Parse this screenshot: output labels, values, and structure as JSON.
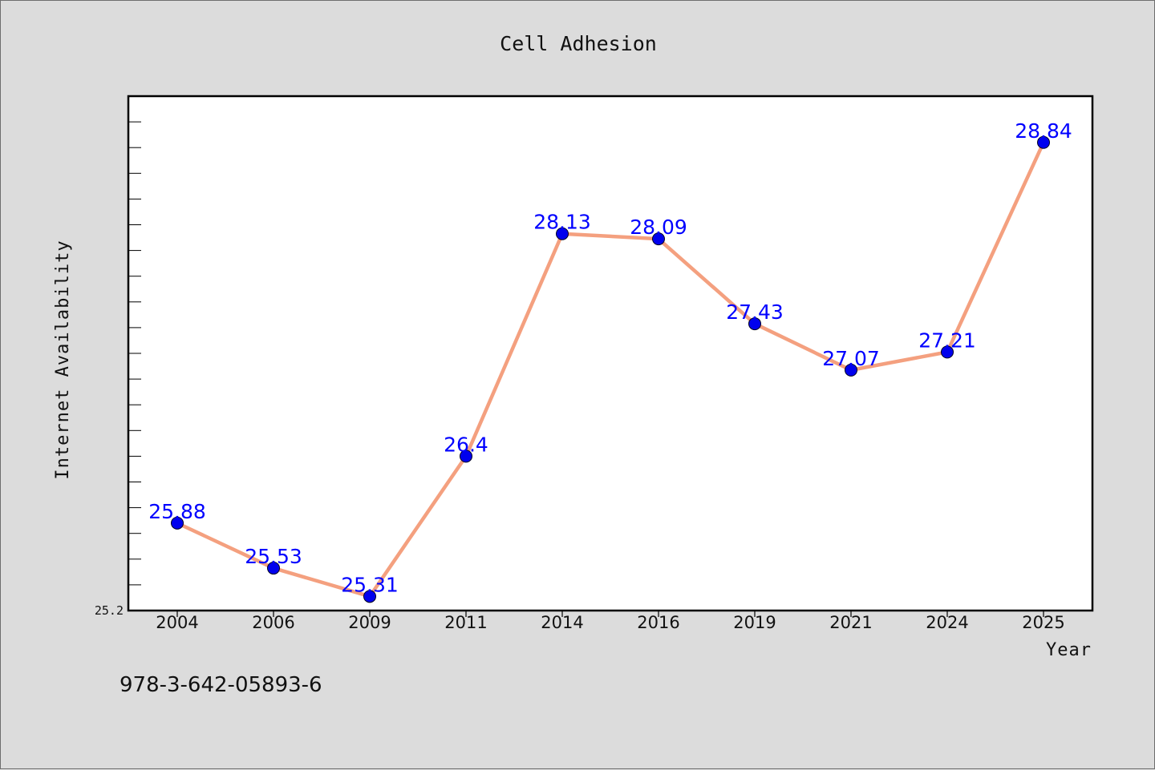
{
  "chart_data": {
    "type": "line",
    "title": "Cell Adhesion",
    "xlabel": "Year",
    "ylabel": "Internet Availability",
    "categories": [
      "2004",
      "2006",
      "2009",
      "2011",
      "2014",
      "2016",
      "2019",
      "2021",
      "2024",
      "2025"
    ],
    "series": [
      {
        "values": [
          25.88,
          25.53,
          25.31,
          26.4,
          28.13,
          28.09,
          27.43,
          27.07,
          27.21,
          28.84
        ],
        "labels": [
          "25.88",
          "25.53",
          "25.31",
          "26.4",
          "28.13",
          "28.09",
          "27.43",
          "27.07",
          "27.21",
          "28.84"
        ],
        "line_color": "#f4a07f",
        "marker_color": "#0000ee"
      }
    ],
    "ylim": [
      25.2,
      29.2
    ],
    "y_min_label": "25.2",
    "grid": false,
    "legend": "none"
  },
  "footer": {
    "isbn": "978-3-642-05893-6"
  }
}
